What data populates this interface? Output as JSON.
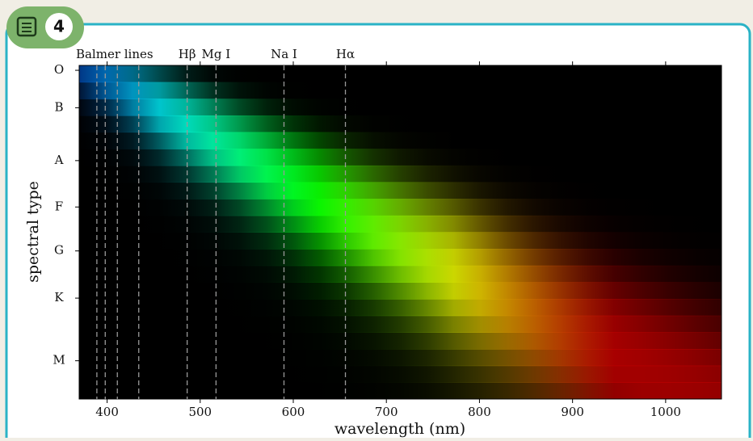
{
  "badge": "4",
  "chart_data": {
    "type": "spectrum-image",
    "xlabel": "wavelength (nm)",
    "ylabel": "spectral type",
    "xlim": [
      370,
      1060
    ],
    "xticks": [
      400,
      500,
      600,
      700,
      800,
      900,
      1000
    ],
    "ylim": [
      0,
      41
    ],
    "yticks": [
      {
        "value": 0.6,
        "label": "O"
      },
      {
        "value": 5.2,
        "label": "B"
      },
      {
        "value": 11.7,
        "label": "A"
      },
      {
        "value": 17.4,
        "label": "F"
      },
      {
        "value": 22.8,
        "label": "G"
      },
      {
        "value": 28.6,
        "label": "K"
      },
      {
        "value": 36.3,
        "label": "M"
      }
    ],
    "annotations": [
      {
        "text": "Balmer lines",
        "x": [
          389,
          398,
          411,
          434
        ]
      },
      {
        "text": "Hβ",
        "x": [
          486
        ]
      },
      {
        "text": "Mg I",
        "x": [
          517
        ]
      },
      {
        "text": "Na I",
        "x": [
          590
        ]
      },
      {
        "text": "Hα",
        "x": [
          656
        ]
      }
    ]
  }
}
